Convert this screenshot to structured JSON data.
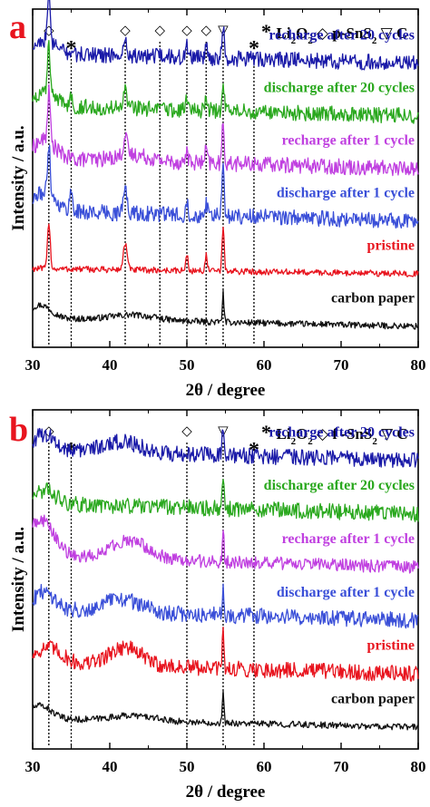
{
  "chart_data": [
    {
      "type": "line",
      "panel_label": "a",
      "xlabel": "2θ / degree",
      "ylabel": "Intensity / a.u.",
      "xlim": [
        30,
        80
      ],
      "xticks": [
        30,
        40,
        50,
        60,
        70,
        80
      ],
      "grid": false,
      "legend": {
        "placement": "top-right",
        "items": [
          {
            "symbol": "*",
            "text": "Li",
            "sub": "2",
            "text2": "O",
            "sub2": "2"
          },
          {
            "symbol": "◇",
            "text": "p-SnS",
            "sub": "2"
          },
          {
            "symbol": "▽",
            "text": "C"
          }
        ]
      },
      "markers": [
        {
          "symbol": "◇",
          "x": 32.1
        },
        {
          "symbol": "*",
          "x": 35.0
        },
        {
          "symbol": "◇",
          "x": 42.0
        },
        {
          "symbol": "◇",
          "x": 46.5
        },
        {
          "symbol": "◇",
          "x": 50.0
        },
        {
          "symbol": "◇",
          "x": 52.5
        },
        {
          "symbol": "▽",
          "x": 54.7
        },
        {
          "symbol": "*",
          "x": 58.7
        }
      ],
      "series": [
        {
          "name": "carbon paper",
          "color": "#111111",
          "baseline": 0.0,
          "tilt": 0.08,
          "noise": 0.02,
          "humps": [
            {
              "x": 31.0,
              "h": 0.25,
              "w": 2.0
            },
            {
              "x": 43.0,
              "h": 0.1,
              "w": 4.0
            }
          ],
          "peaks": [
            {
              "x": 54.7,
              "h": 0.55,
              "w": 0.15
            }
          ]
        },
        {
          "name": "pristine",
          "color": "#e8141e",
          "baseline": 1.0,
          "tilt": 0.05,
          "noise": 0.02,
          "humps": [],
          "peaks": [
            {
              "x": 32.1,
              "h": 0.9,
              "w": 0.25
            },
            {
              "x": 42.0,
              "h": 0.5,
              "w": 0.35
            },
            {
              "x": 50.0,
              "h": 0.3,
              "w": 0.2
            },
            {
              "x": 52.5,
              "h": 0.3,
              "w": 0.2
            },
            {
              "x": 54.7,
              "h": 0.8,
              "w": 0.2
            }
          ]
        },
        {
          "name": "discharge after 1 cycle",
          "color": "#3a4fd8",
          "baseline": 2.0,
          "tilt": 0.1,
          "noise": 0.05,
          "humps": [
            {
              "x": 31.5,
              "h": 0.35,
              "w": 2.0
            }
          ],
          "peaks": [
            {
              "x": 32.1,
              "h": 1.0,
              "w": 0.25
            },
            {
              "x": 35.0,
              "h": 0.35,
              "w": 0.3
            },
            {
              "x": 42.0,
              "h": 0.45,
              "w": 0.35
            },
            {
              "x": 50.0,
              "h": 0.3,
              "w": 0.2
            },
            {
              "x": 52.5,
              "h": 0.25,
              "w": 0.2
            },
            {
              "x": 54.7,
              "h": 0.95,
              "w": 0.2
            }
          ]
        },
        {
          "name": "recharge after 1 cycle",
          "color": "#c040e0",
          "baseline": 3.0,
          "tilt": 0.1,
          "noise": 0.05,
          "humps": [
            {
              "x": 31.5,
              "h": 0.35,
              "w": 2.0
            },
            {
              "x": 43.0,
              "h": 0.12,
              "w": 3.0
            }
          ],
          "peaks": [
            {
              "x": 32.1,
              "h": 0.95,
              "w": 0.25
            },
            {
              "x": 42.0,
              "h": 0.35,
              "w": 0.35
            },
            {
              "x": 50.0,
              "h": 0.25,
              "w": 0.2
            },
            {
              "x": 52.5,
              "h": 0.25,
              "w": 0.2
            },
            {
              "x": 54.7,
              "h": 0.75,
              "w": 0.2
            }
          ]
        },
        {
          "name": "discharge after 20 cycles",
          "color": "#2aa81e",
          "baseline": 4.0,
          "tilt": 0.1,
          "noise": 0.05,
          "humps": [
            {
              "x": 31.5,
              "h": 0.25,
              "w": 2.0
            }
          ],
          "peaks": [
            {
              "x": 32.1,
              "h": 0.9,
              "w": 0.25
            },
            {
              "x": 35.0,
              "h": 0.2,
              "w": 0.3
            },
            {
              "x": 42.0,
              "h": 0.3,
              "w": 0.35
            },
            {
              "x": 50.0,
              "h": 0.2,
              "w": 0.2
            },
            {
              "x": 52.5,
              "h": 0.2,
              "w": 0.2
            },
            {
              "x": 54.7,
              "h": 0.55,
              "w": 0.2
            }
          ]
        },
        {
          "name": "recharge after 20 cycles",
          "color": "#1a1aa8",
          "baseline": 5.0,
          "tilt": 0.1,
          "noise": 0.05,
          "humps": [
            {
              "x": 31.5,
              "h": 0.25,
              "w": 2.0
            }
          ],
          "peaks": [
            {
              "x": 32.1,
              "h": 0.8,
              "w": 0.25
            },
            {
              "x": 42.0,
              "h": 0.25,
              "w": 0.35
            },
            {
              "x": 50.0,
              "h": 0.2,
              "w": 0.2
            },
            {
              "x": 52.5,
              "h": 0.2,
              "w": 0.2
            },
            {
              "x": 54.7,
              "h": 0.6,
              "w": 0.2
            }
          ]
        }
      ]
    },
    {
      "type": "line",
      "panel_label": "b",
      "xlabel": "2θ / degree",
      "ylabel": "Intensity / a.u.",
      "xlim": [
        30,
        80
      ],
      "xticks": [
        30,
        40,
        50,
        60,
        70,
        80
      ],
      "grid": false,
      "legend": {
        "placement": "top-right",
        "items": [
          {
            "symbol": "*",
            "text": "Li",
            "sub": "2",
            "text2": "O",
            "sub2": "2"
          },
          {
            "symbol": "◇",
            "text": "f -SnS",
            "sub": "2"
          },
          {
            "symbol": "▽",
            "text": "C"
          }
        ]
      },
      "markers": [
        {
          "symbol": "◇",
          "x": 32.1
        },
        {
          "symbol": "*",
          "x": 35.0
        },
        {
          "symbol": "◇",
          "x": 50.0
        },
        {
          "symbol": "▽",
          "x": 54.7
        },
        {
          "symbol": "*",
          "x": 58.7
        }
      ],
      "series": [
        {
          "name": "carbon paper",
          "color": "#111111",
          "baseline": 0.0,
          "tilt": 0.08,
          "noise": 0.02,
          "humps": [
            {
              "x": 31.0,
              "h": 0.25,
              "w": 2.0
            },
            {
              "x": 43.0,
              "h": 0.1,
              "w": 4.0
            }
          ],
          "peaks": [
            {
              "x": 54.7,
              "h": 0.55,
              "w": 0.15
            }
          ]
        },
        {
          "name": "pristine",
          "color": "#e8141e",
          "baseline": 1.0,
          "tilt": 0.1,
          "noise": 0.05,
          "humps": [
            {
              "x": 32.0,
              "h": 0.3,
              "w": 2.5
            },
            {
              "x": 42.0,
              "h": 0.35,
              "w": 3.0
            }
          ],
          "peaks": [
            {
              "x": 54.7,
              "h": 0.7,
              "w": 0.15
            }
          ]
        },
        {
          "name": "discharge after 1 cycle",
          "color": "#3a4fd8",
          "baseline": 2.0,
          "tilt": 0.1,
          "noise": 0.05,
          "humps": [
            {
              "x": 31.5,
              "h": 0.35,
              "w": 2.0
            },
            {
              "x": 41.5,
              "h": 0.25,
              "w": 3.5
            }
          ],
          "peaks": [
            {
              "x": 54.7,
              "h": 0.55,
              "w": 0.15
            }
          ]
        },
        {
          "name": "recharge after 1 cycle",
          "color": "#c040e0",
          "baseline": 3.0,
          "tilt": 0.1,
          "noise": 0.04,
          "humps": [
            {
              "x": 31.0,
              "h": 0.7,
              "w": 2.5
            },
            {
              "x": 42.5,
              "h": 0.35,
              "w": 3.5
            }
          ],
          "peaks": [
            {
              "x": 54.7,
              "h": 0.6,
              "w": 0.15
            }
          ]
        },
        {
          "name": "discharge after 20 cycles",
          "color": "#2aa81e",
          "baseline": 4.0,
          "tilt": 0.1,
          "noise": 0.05,
          "humps": [
            {
              "x": 31.5,
              "h": 0.25,
              "w": 2.0
            }
          ],
          "peaks": [
            {
              "x": 54.7,
              "h": 0.6,
              "w": 0.15
            }
          ]
        },
        {
          "name": "recharge after 20 cycles",
          "color": "#1a1aa8",
          "baseline": 5.0,
          "tilt": 0.1,
          "noise": 0.05,
          "humps": [
            {
              "x": 31.5,
              "h": 0.3,
              "w": 2.0
            },
            {
              "x": 41.5,
              "h": 0.2,
              "w": 3.5
            }
          ],
          "peaks": [
            {
              "x": 54.7,
              "h": 0.55,
              "w": 0.15
            }
          ]
        }
      ]
    }
  ]
}
